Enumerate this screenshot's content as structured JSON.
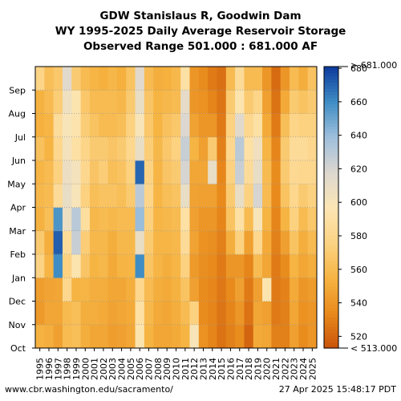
{
  "titles": {
    "line1": "GDW Stanislaus R, Goodwin Dam",
    "line2": "WY 1995-2025 Daily Average Reservoir Storage",
    "line3": "Observed Range 501.000 : 681.000 AF"
  },
  "footer": {
    "url": "www.cbr.washington.edu/sacramento/",
    "timestamp": "27 Apr 2025 15:48:17 PDT"
  },
  "chart_data": {
    "type": "heatmap",
    "x": [
      "1995",
      "1996",
      "1997",
      "1998",
      "1999",
      "2000",
      "2001",
      "2002",
      "2003",
      "2004",
      "2005",
      "2006",
      "2007",
      "2008",
      "2009",
      "2010",
      "2011",
      "2012",
      "2013",
      "2014",
      "2015",
      "2016",
      "2017",
      "2018",
      "2019",
      "2020",
      "2021",
      "2022",
      "2023",
      "2024",
      "2025"
    ],
    "y": [
      "Oct",
      "Nov",
      "Dec",
      "Jan",
      "Feb",
      "Mar",
      "Apr",
      "May",
      "Jun",
      "Jul",
      "Aug",
      "Sep"
    ],
    "colorbar": {
      "ticks": [
        520,
        540,
        560,
        580,
        600,
        620,
        640,
        660,
        680
      ],
      "tick_labels": [
        "520",
        "540",
        "560",
        "580",
        "600",
        "620",
        "640",
        "660",
        "680"
      ],
      "range": [
        513,
        681
      ],
      "over_label": "> 681.000",
      "under_label": "< 513.000",
      "colors": [
        "#c9530a",
        "#e88a1c",
        "#f6b442",
        "#fcd384",
        "#fce6b4",
        "#dcd7d0",
        "#9ebfdc",
        "#3f8dc4",
        "#0d3a9c"
      ]
    },
    "values": [
      [
        554,
        542,
        544,
        576,
        570,
        554,
        558,
        556,
        564,
        553,
        554,
        578
      ],
      [
        552,
        548,
        547,
        556,
        552,
        562,
        560,
        560,
        555,
        556,
        560,
        562
      ],
      [
        545,
        548,
        548,
        660,
        672,
        657,
        585,
        575,
        580,
        586,
        572,
        568
      ],
      [
        560,
        559,
        580,
        575,
        585,
        608,
        610,
        608,
        603,
        600,
        606,
        615
      ],
      [
        562,
        562,
        555,
        595,
        625,
        630,
        600,
        603,
        590,
        594,
        595,
        570
      ],
      [
        552,
        552,
        556,
        566,
        572,
        588,
        575,
        580,
        578,
        572,
        568,
        560
      ],
      [
        548,
        552,
        552,
        555,
        558,
        558,
        562,
        566,
        570,
        565,
        560,
        556
      ],
      [
        548,
        550,
        552,
        558,
        558,
        560,
        565,
        572,
        570,
        560,
        560,
        553
      ],
      [
        544,
        546,
        548,
        550,
        552,
        558,
        565,
        562,
        566,
        560,
        560,
        557
      ],
      [
        545,
        548,
        548,
        555,
        558,
        560,
        562,
        565,
        570,
        562,
        558,
        553
      ],
      [
        548,
        550,
        552,
        556,
        558,
        560,
        570,
        575,
        580,
        575,
        570,
        565
      ],
      [
        595,
        590,
        580,
        660,
        610,
        640,
        630,
        670,
        610,
        600,
        610,
        615
      ],
      [
        555,
        558,
        560,
        566,
        570,
        574,
        578,
        576,
        572,
        568,
        566,
        560
      ],
      [
        548,
        550,
        552,
        556,
        556,
        556,
        556,
        556,
        558,
        555,
        555,
        552
      ],
      [
        548,
        548,
        550,
        552,
        556,
        558,
        562,
        566,
        568,
        564,
        558,
        553
      ],
      [
        550,
        552,
        554,
        556,
        558,
        560,
        565,
        570,
        575,
        568,
        560,
        558
      ],
      [
        555,
        560,
        565,
        575,
        585,
        590,
        610,
        620,
        625,
        618,
        612,
        590
      ],
      [
        600,
        575,
        545,
        542,
        546,
        545,
        546,
        548,
        555,
        546,
        540,
        540
      ],
      [
        538,
        535,
        535,
        536,
        538,
        540,
        545,
        548,
        545,
        540,
        538,
        535
      ],
      [
        532,
        532,
        533,
        534,
        536,
        540,
        545,
        610,
        570,
        540,
        532,
        528
      ],
      [
        525,
        526,
        527,
        528,
        530,
        532,
        534,
        533,
        530,
        528,
        526,
        524
      ],
      [
        530,
        532,
        534,
        540,
        552,
        565,
        570,
        575,
        580,
        575,
        570,
        560
      ],
      [
        535,
        540,
        545,
        540,
        575,
        590,
        610,
        625,
        630,
        615,
        595,
        585
      ],
      [
        520,
        525,
        528,
        532,
        545,
        560,
        575,
        585,
        590,
        580,
        570,
        560
      ],
      [
        550,
        548,
        545,
        560,
        580,
        600,
        620,
        610,
        605,
        590,
        578,
        560
      ],
      [
        548,
        545,
        595,
        548,
        550,
        555,
        560,
        560,
        556,
        550,
        545,
        540
      ],
      [
        530,
        528,
        528,
        528,
        530,
        532,
        534,
        535,
        532,
        528,
        525,
        522
      ],
      [
        530,
        530,
        531,
        535,
        545,
        555,
        565,
        570,
        570,
        562,
        550,
        540
      ],
      [
        545,
        548,
        550,
        555,
        565,
        575,
        580,
        582,
        585,
        578,
        570,
        560
      ],
      [
        535,
        538,
        540,
        548,
        552,
        560,
        570,
        580,
        585,
        575,
        565,
        552
      ],
      [
        540,
        540,
        543,
        552,
        560,
        568,
        575,
        580,
        580,
        575,
        570,
        565
      ]
    ]
  }
}
